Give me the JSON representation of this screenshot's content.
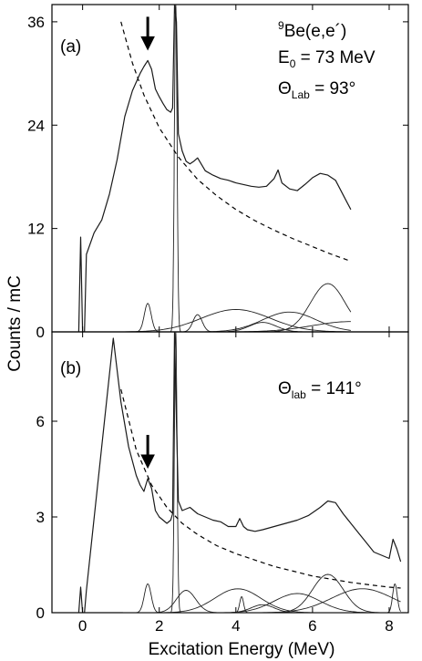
{
  "chart_data": {
    "type": "line",
    "x_axis": {
      "label": "Excitation Energy (MeV)",
      "range": [
        -0.8,
        8.5
      ],
      "ticks": [
        0,
        2,
        4,
        6,
        8
      ]
    },
    "y_axis": {
      "label": "Counts / mC"
    },
    "grid": false,
    "panels": [
      {
        "label": "(a)",
        "ylim": [
          0,
          38
        ],
        "yticks": [
          0,
          12,
          24,
          36
        ],
        "annotations": {
          "reaction_sup": "9",
          "reaction": "Be(e,e´)",
          "energy_main": "E",
          "energy_sub": "0",
          "energy_rest": " = 73 MeV",
          "angle_main": "Θ",
          "angle_sub": "Lab",
          "angle_rest": " = 93°"
        },
        "arrow_x": 1.7,
        "spectrum": {
          "x": [
            -0.1,
            -0.05,
            0.0,
            0.05,
            0.1,
            0.3,
            0.5,
            0.7,
            0.9,
            1.1,
            1.3,
            1.5,
            1.6,
            1.7,
            1.8,
            1.9,
            2.0,
            2.1,
            2.2,
            2.3,
            2.35,
            2.4,
            2.45,
            2.5,
            2.6,
            2.7,
            2.8,
            2.9,
            3.0,
            3.2,
            3.4,
            3.6,
            3.8,
            4.0,
            4.2,
            4.4,
            4.6,
            4.8,
            5.0,
            5.1,
            5.2,
            5.4,
            5.6,
            5.8,
            6.0,
            6.2,
            6.4,
            6.6,
            6.8,
            7.0
          ],
          "y": [
            0,
            11,
            0,
            0,
            9,
            11.5,
            13,
            16,
            20,
            25,
            28,
            30,
            30.8,
            31.5,
            30.5,
            28.2,
            27.3,
            26.5,
            25.8,
            25.5,
            26,
            38,
            36,
            23,
            21,
            19.8,
            19.5,
            19.8,
            20.2,
            18.7,
            18.2,
            17.8,
            17.6,
            17.3,
            17.1,
            16.9,
            16.8,
            16.9,
            17.8,
            18.8,
            17.3,
            16.6,
            16.4,
            17.1,
            17.9,
            18.4,
            18.2,
            17.6,
            15.9,
            14.2
          ]
        },
        "background": {
          "x": [
            1.0,
            1.3,
            1.6,
            2.0,
            2.5,
            3.0,
            3.5,
            4.0,
            4.5,
            5.0,
            5.5,
            6.0,
            6.5,
            7.0
          ],
          "y": [
            36.0,
            31.2,
            27.5,
            23.7,
            20.3,
            17.7,
            15.8,
            14.2,
            12.9,
            11.8,
            10.8,
            9.9,
            9.0,
            8.2
          ]
        },
        "components": [
          {
            "center": 1.7,
            "height": 3.3,
            "width": 0.09
          },
          {
            "center": 2.43,
            "height": 38,
            "width": 0.035
          },
          {
            "center": 3.0,
            "height": 2.0,
            "width": 0.12
          },
          {
            "center": 4.0,
            "height": 2.6,
            "width": 0.9
          },
          {
            "center": 4.7,
            "height": 1.1,
            "width": 0.35
          },
          {
            "center": 5.4,
            "height": 2.3,
            "width": 0.7
          },
          {
            "center": 6.4,
            "height": 5.6,
            "width": 0.45
          },
          {
            "center": 7.0,
            "height": 1.2,
            "width": 1.0
          }
        ]
      },
      {
        "label": "(b)",
        "ylim": [
          0,
          8.8
        ],
        "yticks": [
          0,
          3,
          6
        ],
        "annotations": {
          "angle_main": "Θ",
          "angle_sub": "lab",
          "angle_rest": " = 141°"
        },
        "arrow_x": 1.7,
        "spectrum": {
          "x": [
            -0.1,
            -0.05,
            0.0,
            0.05,
            0.1,
            0.8,
            1.0,
            1.2,
            1.4,
            1.5,
            1.6,
            1.7,
            1.8,
            1.9,
            2.0,
            2.1,
            2.2,
            2.3,
            2.35,
            2.4,
            2.45,
            2.5,
            2.6,
            2.8,
            3.0,
            3.2,
            3.4,
            3.6,
            3.8,
            4.0,
            4.1,
            4.2,
            4.3,
            4.5,
            4.7,
            5.0,
            5.3,
            5.6,
            5.9,
            6.2,
            6.4,
            6.6,
            6.8,
            7.0,
            7.2,
            7.4,
            7.6,
            7.8,
            8.0,
            8.1,
            8.2,
            8.3
          ],
          "y": [
            0,
            0.8,
            0,
            0,
            0.7,
            8.6,
            6.6,
            5.2,
            4.3,
            4.0,
            3.8,
            4.2,
            3.9,
            3.2,
            3.0,
            2.9,
            2.8,
            2.9,
            3.1,
            8.8,
            6.0,
            3.5,
            3.2,
            3.3,
            3.1,
            3.0,
            2.9,
            2.85,
            2.7,
            2.7,
            2.95,
            2.7,
            2.6,
            2.55,
            2.6,
            2.7,
            2.8,
            2.9,
            3.05,
            3.3,
            3.5,
            3.45,
            3.1,
            2.8,
            2.5,
            2.2,
            1.9,
            1.8,
            1.7,
            2.3,
            2.0,
            1.6
          ]
        },
        "background": {
          "x": [
            1.0,
            1.4,
            1.8,
            2.2,
            2.6,
            3.0,
            3.5,
            4.0,
            4.5,
            5.0,
            5.5,
            6.0,
            6.5,
            7.0,
            7.5,
            8.0,
            8.3
          ],
          "y": [
            7.0,
            5.1,
            4.0,
            3.3,
            2.8,
            2.45,
            2.1,
            1.85,
            1.65,
            1.45,
            1.3,
            1.15,
            1.05,
            0.95,
            0.87,
            0.8,
            0.77
          ]
        },
        "components": [
          {
            "center": 1.7,
            "height": 0.9,
            "width": 0.09
          },
          {
            "center": 2.43,
            "height": 8.8,
            "width": 0.035
          },
          {
            "center": 2.7,
            "height": 0.7,
            "width": 0.25
          },
          {
            "center": 4.05,
            "height": 0.75,
            "width": 0.6
          },
          {
            "center": 4.15,
            "height": 0.5,
            "width": 0.05
          },
          {
            "center": 4.7,
            "height": 0.25,
            "width": 0.3
          },
          {
            "center": 5.6,
            "height": 0.6,
            "width": 0.6
          },
          {
            "center": 6.4,
            "height": 1.2,
            "width": 0.4
          },
          {
            "center": 7.3,
            "height": 0.75,
            "width": 0.8
          },
          {
            "center": 8.15,
            "height": 0.9,
            "width": 0.06
          }
        ]
      }
    ]
  }
}
